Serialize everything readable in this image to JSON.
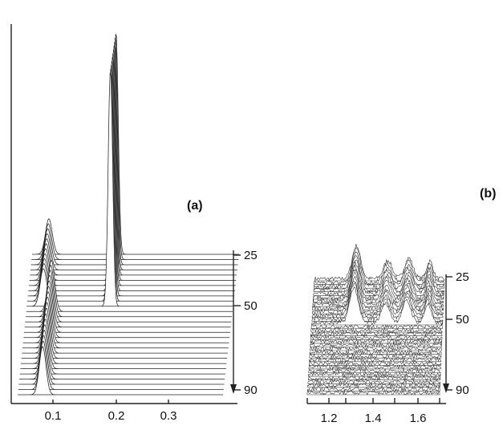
{
  "chart_data": [
    {
      "panel": "a",
      "type": "line",
      "panel_label": "(a)",
      "xticks": [
        0.1,
        0.2,
        0.3
      ],
      "xtick_labels": [
        "0.1",
        "0.2",
        "0.3"
      ],
      "xlim": [
        0.03,
        0.4
      ],
      "depth_ticks": [
        25,
        50,
        90
      ],
      "depth_tick_labels": [
        "25",
        "50",
        "90"
      ],
      "depth_range": [
        20,
        95
      ],
      "depth_direction": "down-arrow",
      "n_traces": 28,
      "peaks": [
        {
          "x": 0.18,
          "width": 0.004,
          "height": 300,
          "depth_range": [
            20,
            50
          ]
        },
        {
          "x": 0.06,
          "width": 0.006,
          "height": 48,
          "depth_range": [
            20,
            50
          ]
        },
        {
          "x": 0.075,
          "width": 0.006,
          "height": 65,
          "depth_range": [
            50,
            95
          ]
        }
      ],
      "notes": "Stacked (waterfall) traces; a sharp peak near 0.18 in the upper traces only, a smaller edge peak near 0.06–0.08 shifting to higher x in the lower traces."
    },
    {
      "panel": "b",
      "type": "line",
      "panel_label": "(b)",
      "xticks": [
        1.2,
        1.4,
        1.6
      ],
      "xtick_labels": [
        "1.2",
        "1.4",
        "1.6"
      ],
      "xlim": [
        1.1,
        1.72
      ],
      "depth_ticks": [
        25,
        50,
        90
      ],
      "depth_tick_labels": [
        "25",
        "50",
        "90"
      ],
      "depth_range": [
        20,
        95
      ],
      "depth_direction": "down-arrow",
      "n_traces": 32,
      "peaks": [
        {
          "x": 1.3,
          "width": 0.02,
          "height": 45,
          "depth_range": [
            20,
            50
          ]
        },
        {
          "x": 1.45,
          "width": 0.02,
          "height": 25,
          "depth_range": [
            20,
            50
          ]
        },
        {
          "x": 1.55,
          "width": 0.02,
          "height": 28,
          "depth_range": [
            20,
            50
          ]
        },
        {
          "x": 1.65,
          "width": 0.015,
          "height": 24,
          "depth_range": [
            20,
            50
          ]
        }
      ],
      "notes": "Noisy stacked traces; several peaks present only in the upper traces."
    }
  ]
}
